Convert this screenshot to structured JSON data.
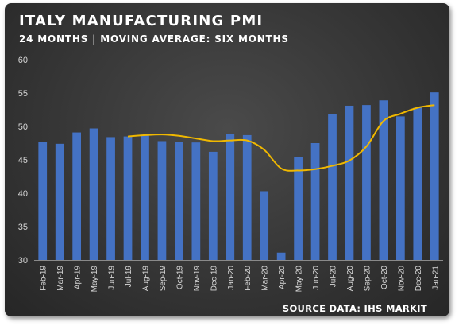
{
  "title": "ITALY MANUFACTURING PMI",
  "subtitle": "24 MONTHS | MOVING AVERAGE: SIX MONTHS",
  "source": "SOURCE DATA: IHS MARKIT",
  "colors": {
    "bar": "#4472c4",
    "line": "#f0b800",
    "background": "#3a3a3a",
    "text": "#ffffff"
  },
  "chart_data": {
    "type": "bar",
    "categories": [
      "Feb-19",
      "Mar-19",
      "Apr-19",
      "May-19",
      "Jun-19",
      "Jul-19",
      "Aug-19",
      "Sep-19",
      "Oct-19",
      "Nov-19",
      "Dec-19",
      "Jan-20",
      "Feb-20",
      "Mar-20",
      "Apr-20",
      "May-20",
      "Jun-20",
      "Jul-20",
      "Aug-20",
      "Sep-20",
      "Oct-20",
      "Nov-20",
      "Dec-20",
      "Jan-21"
    ],
    "series": [
      {
        "type": "bar",
        "values": [
          47.7,
          47.4,
          49.1,
          49.7,
          48.4,
          48.5,
          48.7,
          47.8,
          47.7,
          47.6,
          46.2,
          48.9,
          48.7,
          40.3,
          31.1,
          45.4,
          47.5,
          51.9,
          53.1,
          53.2,
          53.9,
          51.5,
          52.8,
          55.1
        ]
      },
      {
        "type": "line",
        "values": [
          null,
          null,
          null,
          null,
          null,
          48.5,
          48.7,
          48.8,
          48.6,
          48.2,
          47.8,
          47.9,
          47.9,
          46.5,
          43.7,
          43.4,
          43.6,
          44.1,
          44.9,
          47.0,
          50.8,
          51.9,
          52.8,
          53.2
        ]
      }
    ],
    "ylim": [
      30,
      60
    ],
    "yticks": [
      30,
      35,
      40,
      45,
      50,
      55,
      60
    ],
    "grid": false,
    "legend": "none"
  }
}
